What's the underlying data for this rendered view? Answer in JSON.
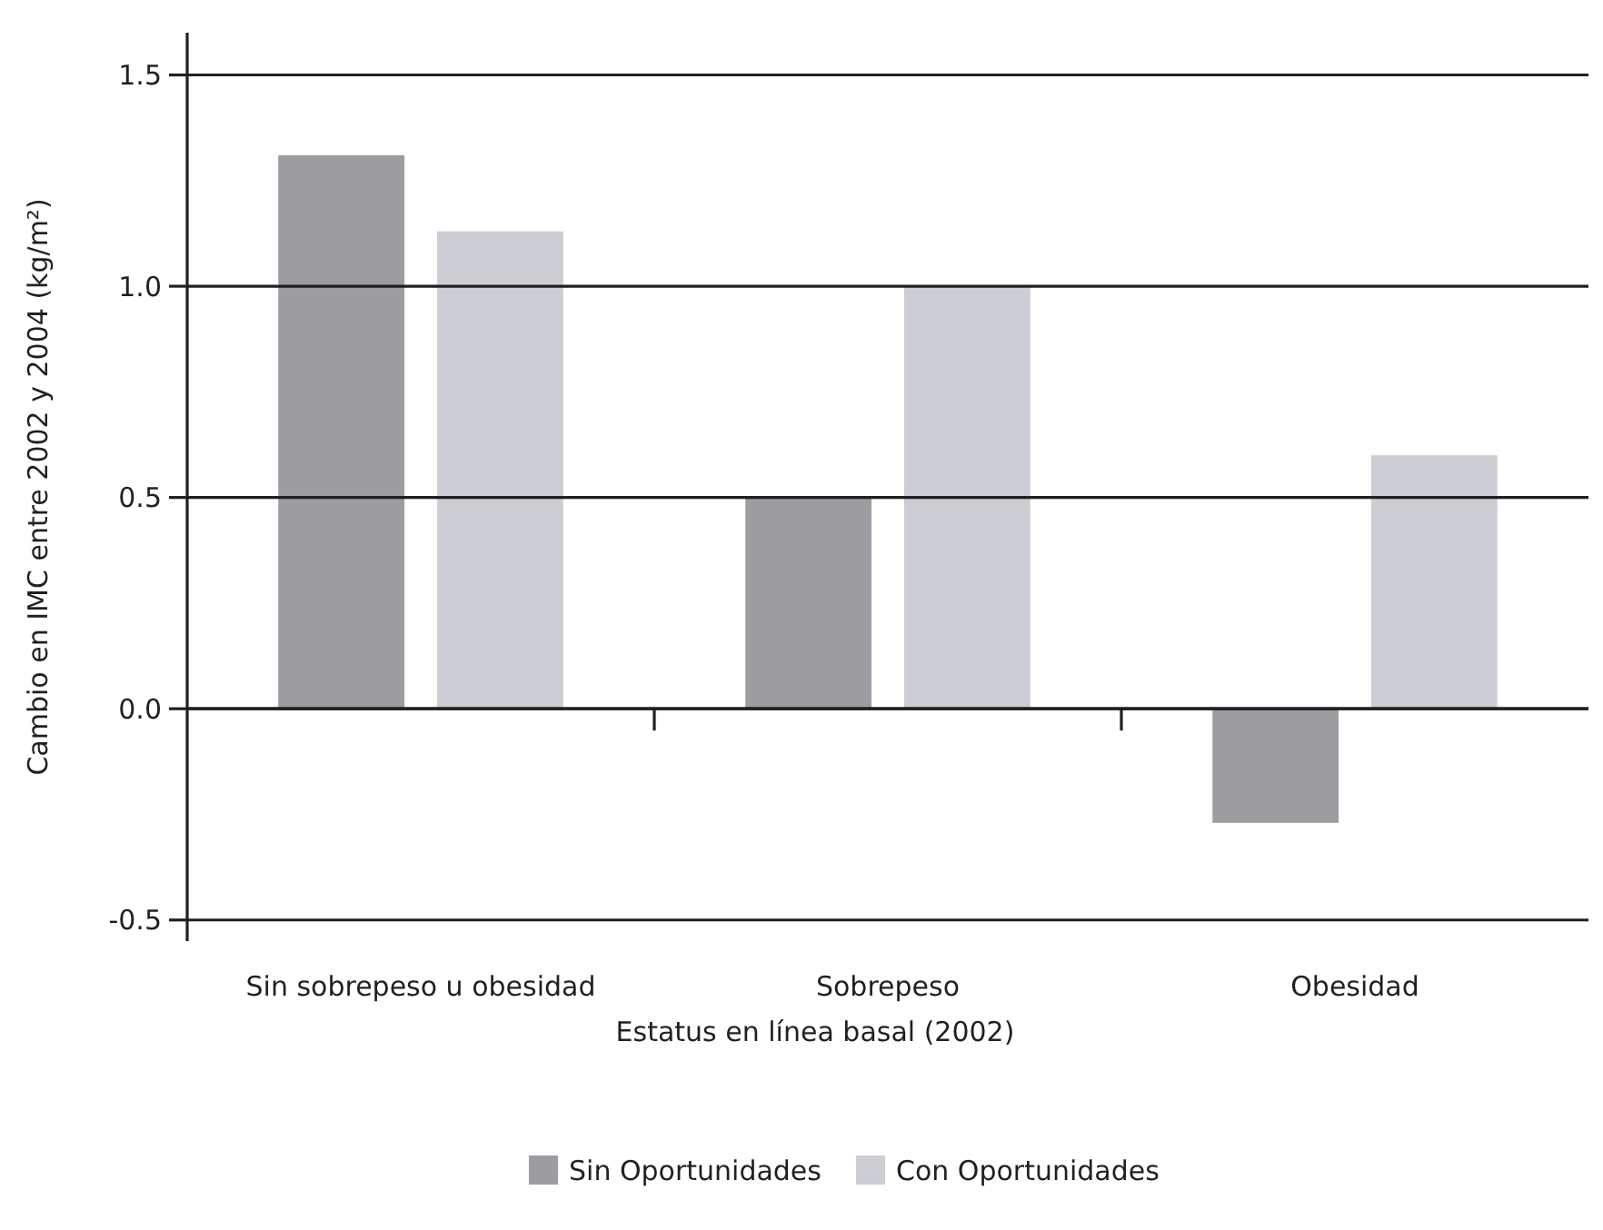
{
  "chart_data": {
    "type": "bar",
    "xlabel": "Estatus en línea basal (2002)",
    "ylabel": "Cambio en IMC entre 2002 y 2004 (kg/m²)",
    "categories": [
      "Sin sobrepeso u obesidad",
      "Sobrepeso",
      "Obesidad"
    ],
    "series": [
      {
        "name": "Sin Oportunidades",
        "color": "#9d9ca0",
        "values": [
          1.31,
          0.5,
          -0.27
        ]
      },
      {
        "name": "Con Oportunidades",
        "color": "#cdced3",
        "values": [
          1.13,
          1.0,
          0.6
        ]
      }
    ],
    "ylim": [
      -0.55,
      1.6
    ],
    "yticks": [
      -0.5,
      {
        "value": 0,
        "label": "0.0"
      },
      {
        "value": 0.5,
        "label": "0.5"
      },
      {
        "value": 1.0,
        "label": "1.0"
      },
      1.5
    ],
    "grid": "y",
    "legend": "bottom"
  }
}
